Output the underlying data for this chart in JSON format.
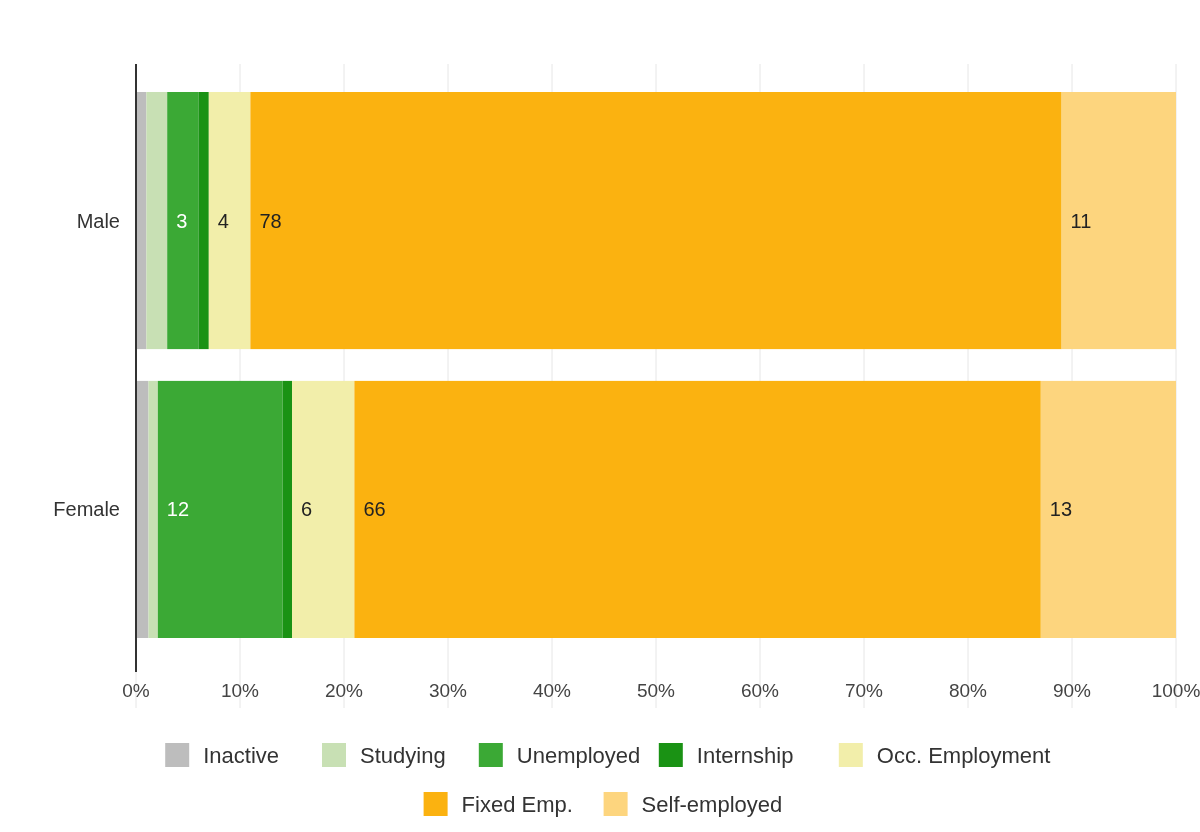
{
  "chart_data": {
    "type": "bar",
    "orientation": "horizontal",
    "stacked": true,
    "categories": [
      "Male",
      "Female"
    ],
    "series": [
      {
        "name": "Inactive",
        "color": "#bdbdbd",
        "values": [
          1,
          1.2
        ],
        "value_labels": [
          null,
          null
        ]
      },
      {
        "name": "Studying",
        "color": "#c8e0b4",
        "values": [
          2,
          0.9
        ],
        "value_labels": [
          null,
          null
        ]
      },
      {
        "name": "Unemployed",
        "color": "#3ba935",
        "values": [
          3,
          12
        ],
        "value_labels": [
          "3",
          "12"
        ]
      },
      {
        "name": "Internship",
        "color": "#1a9214",
        "values": [
          1,
          0.9
        ],
        "value_labels": [
          null,
          null
        ]
      },
      {
        "name": "Occ. Employment",
        "color": "#f2eeaa",
        "values": [
          4,
          6
        ],
        "value_labels": [
          "4",
          "6"
        ]
      },
      {
        "name": "Fixed Emp.",
        "color": "#fbb210",
        "values": [
          78,
          66
        ],
        "value_labels": [
          "78",
          "66"
        ]
      },
      {
        "name": "Self-employed",
        "color": "#fdd57e",
        "values": [
          11,
          13
        ],
        "value_labels": [
          "11",
          "13"
        ]
      }
    ],
    "xlim": [
      0,
      100
    ],
    "xticks": [
      {
        "value": 0,
        "label": "0%"
      },
      {
        "value": 10,
        "label": "10%"
      },
      {
        "value": 20,
        "label": "20%"
      },
      {
        "value": 30,
        "label": "30%"
      },
      {
        "value": 40,
        "label": "40%"
      },
      {
        "value": 50,
        "label": "50%"
      },
      {
        "value": 60,
        "label": "60%"
      },
      {
        "value": 70,
        "label": "70%"
      },
      {
        "value": 80,
        "label": "80%"
      },
      {
        "value": 90,
        "label": "90%"
      },
      {
        "value": 100,
        "label": "100%"
      }
    ],
    "grid": "x",
    "legend": "bottom"
  }
}
